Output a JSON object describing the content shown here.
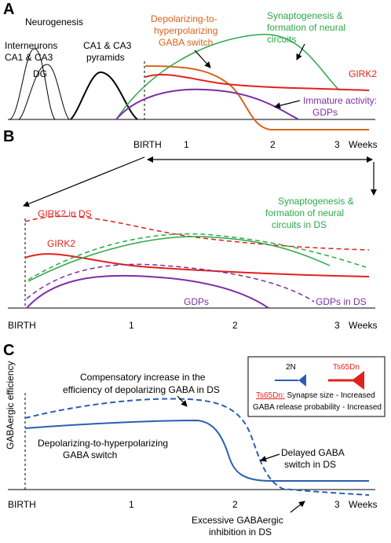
{
  "colors": {
    "orange": "#d8631b",
    "green": "#2ca84a",
    "red": "#e3211c",
    "purple": "#7b2fa6",
    "blue": "#2a5fb0",
    "black": "#000000"
  },
  "panel_a": {
    "letter": "A",
    "neurogenesis": "Neurogenesis",
    "interneurons_line1": "Interneurons",
    "interneurons_line2": "CA1 & CA3",
    "dg": "DG",
    "pyramids_line1": "CA1 & CA3",
    "pyramids_line2": "pyramids",
    "gaba_switch_line1": "Depolarizing-to-",
    "gaba_switch_line2": "hyperpolarizing",
    "gaba_switch_line3": "GABA switch",
    "synapto_line1": "Synaptogenesis &",
    "synapto_line2": "formation of neural",
    "synapto_line3": "circuits",
    "girk2": "GIRK2",
    "immature_line1": "Immature activity:",
    "immature_line2": "GDPs"
  },
  "panel_b": {
    "letter": "B",
    "birth": "BIRTH",
    "tick1": "1",
    "tick2": "2",
    "tick3": "3",
    "weeks": "Weeks",
    "girk2_ds": "GIRK2 in DS",
    "girk2": "GIRK2",
    "synapto_ds_line1": "Synaptogenesis &",
    "synapto_ds_line2": "formation of neural",
    "synapto_ds_line3": "circuits in DS",
    "gdps": "GDPs",
    "gdps_ds": "GDPs in DS",
    "birth2": "BIRTH",
    "tick1b": "1",
    "tick2b": "2",
    "tick3b": "3",
    "weeks2": "Weeks"
  },
  "panel_c": {
    "letter": "C",
    "ylabel": "GABAergic efficiency",
    "comp_line1": "Compensatory increase in the",
    "comp_line2": "efficiency of depolarizing GABA in DS",
    "switch_line1": "Depolarizing-to-hyperpolarizing",
    "switch_line2": "GABA switch",
    "delayed_line1": "Delayed GABA",
    "delayed_line2": "switch in DS",
    "excess_line1": "Excessive GABAergic",
    "excess_line2": "inhibition in DS",
    "birth": "BIRTH",
    "tick1": "1",
    "tick2": "2",
    "tick3": "3",
    "weeks": "Weeks",
    "legend_2n": "2N",
    "legend_ts": "Ts65Dn",
    "legend_ts_underlined": "Ts65Dn:",
    "legend_line1_rest": " Synapse size - Increased",
    "legend_line2": "GABA release probability - Increased"
  }
}
